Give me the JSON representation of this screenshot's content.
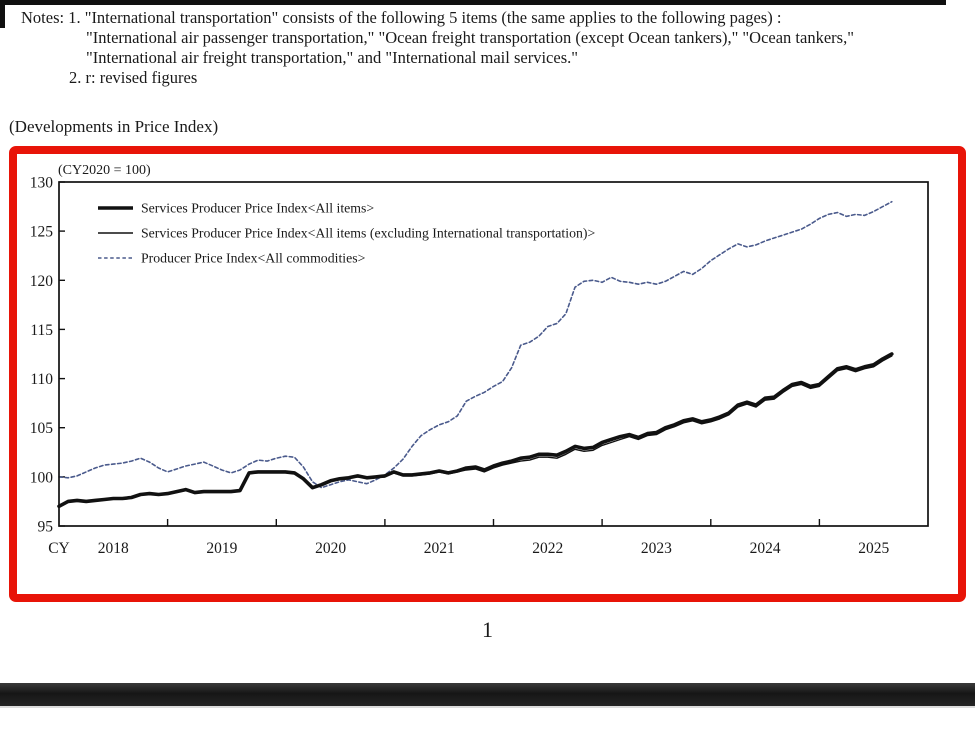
{
  "notes": {
    "line1": "Notes: 1. \"International transportation\" consists of the following 5 items (the same applies to the following pages) :",
    "line2": "\"International air passenger transportation,\" \"Ocean freight transportation (except Ocean tankers),\" \"Ocean tankers,\"",
    "line3": "\"International air freight transportation,\" and \"International mail services.\"",
    "line4": "2. r: revised figures"
  },
  "section_title": "(Developments in Price Index)",
  "page_number": "1",
  "colors": {
    "frame_red": "#e81408",
    "line_black": "#111111",
    "dash_blue": "#4a5a8c",
    "bottom_bar_dark": "#1e1e1e"
  },
  "chart_data": {
    "type": "line",
    "title": "(Developments in Price Index)",
    "unit_note": "(CY2020 = 100)",
    "x_axis_prefix": "CY",
    "x_tick_years": [
      "2018",
      "2019",
      "2020",
      "2021",
      "2022",
      "2023",
      "2024",
      "2025"
    ],
    "x_unit": "month",
    "x_start": "2018-01",
    "x_end": "2025-09",
    "x_points": 93,
    "x_total_months_on_axis": 96,
    "ylim": [
      95,
      130
    ],
    "y_ticks": [
      95,
      100,
      105,
      110,
      115,
      120,
      125,
      130
    ],
    "grid": false,
    "legend_position": "top-left-inside",
    "series": [
      {
        "name": "Services Producer Price Index<All items>",
        "style": "solid-thick",
        "color": "#111111",
        "values": [
          97.0,
          97.5,
          97.6,
          97.5,
          97.6,
          97.7,
          97.8,
          97.8,
          97.9,
          98.2,
          98.3,
          98.2,
          98.3,
          98.5,
          98.7,
          98.4,
          98.5,
          98.5,
          98.5,
          98.5,
          98.6,
          100.4,
          100.5,
          100.5,
          100.5,
          100.5,
          100.4,
          99.8,
          98.9,
          99.2,
          99.6,
          99.8,
          99.9,
          100.1,
          99.9,
          100.0,
          100.1,
          100.5,
          100.2,
          100.2,
          100.3,
          100.4,
          100.6,
          100.4,
          100.6,
          100.9,
          101.0,
          100.7,
          101.1,
          101.4,
          101.6,
          101.9,
          102.0,
          102.3,
          102.3,
          102.2,
          102.6,
          103.1,
          102.9,
          103.0,
          103.5,
          103.8,
          104.1,
          104.3,
          104.0,
          104.4,
          104.5,
          105.0,
          105.3,
          105.7,
          105.9,
          105.6,
          105.8,
          106.1,
          106.5,
          107.3,
          107.6,
          107.3,
          108.0,
          108.1,
          108.8,
          109.4,
          109.6,
          109.2,
          109.4,
          110.2,
          111.0,
          111.2,
          110.9,
          111.2,
          111.4,
          112.0,
          112.5
        ]
      },
      {
        "name": "Services Producer Price Index<All items (excluding International transportation)>",
        "style": "solid-thin",
        "color": "#111111",
        "values": [
          97.0,
          97.5,
          97.6,
          97.5,
          97.6,
          97.7,
          97.8,
          97.8,
          97.9,
          98.2,
          98.3,
          98.2,
          98.3,
          98.5,
          98.7,
          98.4,
          98.5,
          98.5,
          98.5,
          98.5,
          98.6,
          100.4,
          100.5,
          100.5,
          100.5,
          100.5,
          100.4,
          99.8,
          98.9,
          99.2,
          99.6,
          99.8,
          99.9,
          100.0,
          99.9,
          99.9,
          100.0,
          100.4,
          100.1,
          100.1,
          100.2,
          100.3,
          100.5,
          100.3,
          100.5,
          100.7,
          100.8,
          100.5,
          100.9,
          101.2,
          101.4,
          101.6,
          101.7,
          102.0,
          102.0,
          101.9,
          102.3,
          102.8,
          102.6,
          102.7,
          103.2,
          103.5,
          103.8,
          104.1,
          103.8,
          104.2,
          104.3,
          104.8,
          105.1,
          105.5,
          105.7,
          105.4,
          105.6,
          105.9,
          106.3,
          107.1,
          107.4,
          107.1,
          107.8,
          107.9,
          108.6,
          109.2,
          109.4,
          109.0,
          109.2,
          110.0,
          110.8,
          111.0,
          110.7,
          111.0,
          111.2,
          111.8,
          112.3
        ]
      },
      {
        "name": "Producer Price Index<All commodities>",
        "style": "dashed",
        "color": "#4a5a8c",
        "values": [
          100.0,
          99.9,
          100.1,
          100.5,
          100.9,
          101.2,
          101.3,
          101.4,
          101.6,
          101.9,
          101.5,
          100.9,
          100.5,
          100.8,
          101.1,
          101.3,
          101.5,
          101.1,
          100.7,
          100.4,
          100.7,
          101.3,
          101.7,
          101.6,
          101.9,
          102.1,
          102.0,
          101.0,
          99.5,
          98.9,
          99.2,
          99.5,
          99.7,
          99.5,
          99.3,
          99.7,
          100.2,
          100.9,
          101.8,
          103.1,
          104.2,
          104.8,
          105.3,
          105.6,
          106.2,
          107.7,
          108.2,
          108.6,
          109.2,
          109.7,
          111.1,
          113.4,
          113.7,
          114.3,
          115.3,
          115.6,
          116.6,
          119.3,
          119.9,
          120.0,
          119.8,
          120.3,
          119.9,
          119.8,
          119.6,
          119.8,
          119.6,
          119.9,
          120.4,
          120.9,
          120.6,
          121.2,
          122.0,
          122.6,
          123.2,
          123.7,
          123.4,
          123.6,
          124.0,
          124.3,
          124.6,
          124.9,
          125.2,
          125.7,
          126.3,
          126.7,
          126.9,
          126.5,
          126.7,
          126.6,
          127.0,
          127.5,
          128.0
        ]
      }
    ]
  }
}
